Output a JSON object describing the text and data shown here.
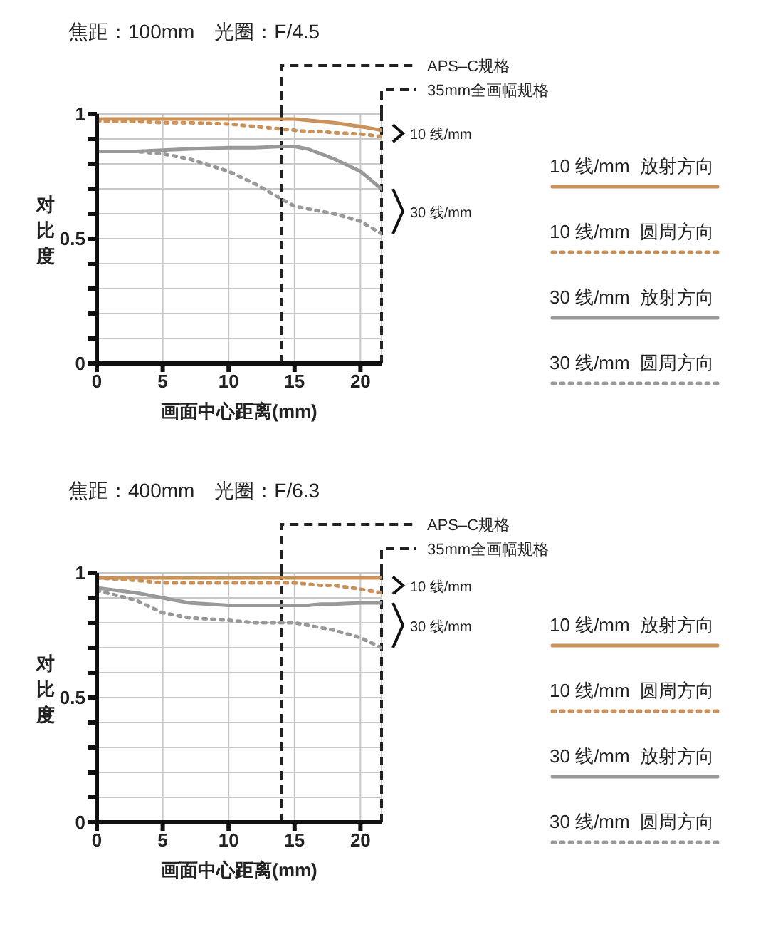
{
  "chart_data": [
    {
      "type": "line",
      "title": "焦距：100mm　光圈：F/4.5",
      "xlabel": "画面中心距离(mm)",
      "ylabel": "对比度",
      "xlim": [
        0,
        21.6
      ],
      "ylim": [
        0,
        1
      ],
      "xticks": [
        0,
        5,
        10,
        15,
        20
      ],
      "yticks": [
        0,
        {
          "value": 0.1,
          "label": null
        },
        {
          "value": 0.2,
          "label": null
        },
        {
          "value": 0.3,
          "label": null
        },
        {
          "value": 0.4,
          "label": null
        },
        0.5,
        {
          "value": 0.6,
          "label": null
        },
        {
          "value": 0.7,
          "label": null
        },
        {
          "value": 0.8,
          "label": null
        },
        {
          "value": 0.9,
          "label": null
        },
        1
      ],
      "grid": true,
      "legend": "right",
      "marker": "none",
      "x": [
        0,
        3,
        5,
        7,
        10,
        12,
        14,
        15,
        16,
        17,
        18,
        20,
        21.6
      ],
      "series": [
        {
          "name": "10 线/mm  放射方向",
          "color": "#c8925a",
          "line_style": "solid",
          "values": [
            0.98,
            0.98,
            0.98,
            0.98,
            0.98,
            0.98,
            0.98,
            0.98,
            0.975,
            0.97,
            0.965,
            0.95,
            0.935
          ]
        },
        {
          "name": "10 线/mm  圆周方向",
          "color": "#c8925a",
          "line_style": "dotted",
          "values": [
            0.97,
            0.97,
            0.965,
            0.965,
            0.96,
            0.95,
            0.94,
            0.935,
            0.93,
            0.93,
            0.925,
            0.92,
            0.91
          ]
        },
        {
          "name": "30 线/mm  放射方向",
          "color": "#999999",
          "line_style": "solid",
          "values": [
            0.85,
            0.85,
            0.855,
            0.86,
            0.865,
            0.865,
            0.87,
            0.87,
            0.86,
            0.84,
            0.82,
            0.77,
            0.7
          ]
        },
        {
          "name": "30 线/mm  圆周方向",
          "color": "#999999",
          "line_style": "dotted",
          "values": [
            0.85,
            0.85,
            0.84,
            0.82,
            0.77,
            0.72,
            0.66,
            0.63,
            0.62,
            0.61,
            0.6,
            0.57,
            0.52
          ]
        }
      ],
      "ref_lines": [
        {
          "axis": "x",
          "value": 14,
          "label": "APS–C规格",
          "color": "#222222",
          "line_style": "dashed"
        },
        {
          "axis": "x",
          "value": 21.6,
          "label": "35mm全画幅规格",
          "color": "#222222",
          "line_style": "dashed"
        }
      ],
      "annotations": [
        "10 线/mm",
        "30 线/mm"
      ]
    },
    {
      "type": "line",
      "title": "焦距：400mm　光圈：F/6.3",
      "xlabel": "画面中心距离(mm)",
      "ylabel": "对比度",
      "xlim": [
        0,
        21.6
      ],
      "ylim": [
        0,
        1
      ],
      "xticks": [
        0,
        5,
        10,
        15,
        20
      ],
      "yticks": [
        0,
        {
          "value": 0.1,
          "label": null
        },
        {
          "value": 0.2,
          "label": null
        },
        {
          "value": 0.3,
          "label": null
        },
        {
          "value": 0.4,
          "label": null
        },
        0.5,
        {
          "value": 0.6,
          "label": null
        },
        {
          "value": 0.7,
          "label": null
        },
        {
          "value": 0.8,
          "label": null
        },
        {
          "value": 0.9,
          "label": null
        },
        1
      ],
      "grid": true,
      "legend": "right",
      "marker": "none",
      "x": [
        0,
        3,
        5,
        7,
        10,
        12,
        14,
        15,
        16,
        17,
        18,
        20,
        21.6
      ],
      "series": [
        {
          "name": "10 线/mm  放射方向",
          "color": "#c8925a",
          "line_style": "solid",
          "values": [
            0.98,
            0.98,
            0.98,
            0.98,
            0.98,
            0.98,
            0.98,
            0.98,
            0.98,
            0.98,
            0.98,
            0.98,
            0.98
          ]
        },
        {
          "name": "10 线/mm  圆周方向",
          "color": "#c8925a",
          "line_style": "dotted",
          "values": [
            0.98,
            0.97,
            0.96,
            0.96,
            0.96,
            0.96,
            0.96,
            0.96,
            0.955,
            0.95,
            0.95,
            0.935,
            0.92
          ]
        },
        {
          "name": "30 线/mm  放射方向",
          "color": "#999999",
          "line_style": "solid",
          "values": [
            0.94,
            0.92,
            0.9,
            0.88,
            0.87,
            0.87,
            0.87,
            0.87,
            0.87,
            0.875,
            0.875,
            0.88,
            0.88
          ]
        },
        {
          "name": "30 线/mm  圆周方向",
          "color": "#999999",
          "line_style": "dotted",
          "values": [
            0.93,
            0.89,
            0.84,
            0.82,
            0.81,
            0.8,
            0.8,
            0.8,
            0.79,
            0.78,
            0.77,
            0.74,
            0.7
          ]
        }
      ],
      "ref_lines": [
        {
          "axis": "x",
          "value": 14,
          "label": "APS–C规格",
          "color": "#222222",
          "line_style": "dashed"
        },
        {
          "axis": "x",
          "value": 21.6,
          "label": "35mm全画幅规格",
          "color": "#222222",
          "line_style": "dashed"
        }
      ],
      "annotations": [
        "10 线/mm",
        "30 线/mm"
      ]
    }
  ]
}
